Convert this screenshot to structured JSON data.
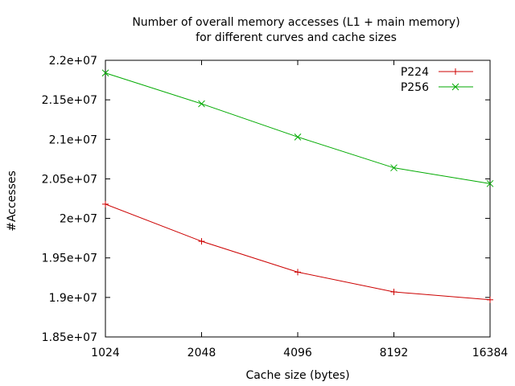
{
  "chart_data": {
    "type": "line",
    "title_lines": [
      "Number of overall memory accesses (L1 + main memory)",
      "for different curves and cache sizes"
    ],
    "xlabel": "Cache size (bytes)",
    "ylabel": "#Accesses",
    "x": [
      "1024",
      "2048",
      "4096",
      "8192",
      "16384"
    ],
    "x_scale": "log2",
    "ylim": [
      18500000,
      22000000
    ],
    "yticks": [
      {
        "value": 18500000,
        "label": "1.85e+07"
      },
      {
        "value": 19000000,
        "label": "1.9e+07"
      },
      {
        "value": 19500000,
        "label": "1.95e+07"
      },
      {
        "value": 20000000,
        "label": "2e+07"
      },
      {
        "value": 20500000,
        "label": "2.05e+07"
      },
      {
        "value": 21000000,
        "label": "2.1e+07"
      },
      {
        "value": 21500000,
        "label": "2.15e+07"
      },
      {
        "value": 22000000,
        "label": "2.2e+07"
      }
    ],
    "grid": false,
    "legend_position": "top-right",
    "series": [
      {
        "name": "P224",
        "color": "#cc0000",
        "marker": "plus",
        "values": [
          20180000,
          19710000,
          19320000,
          19070000,
          18970000
        ]
      },
      {
        "name": "P256",
        "color": "#00aa00",
        "marker": "cross",
        "values": [
          21840000,
          21450000,
          21030000,
          20640000,
          20440000
        ]
      }
    ]
  }
}
